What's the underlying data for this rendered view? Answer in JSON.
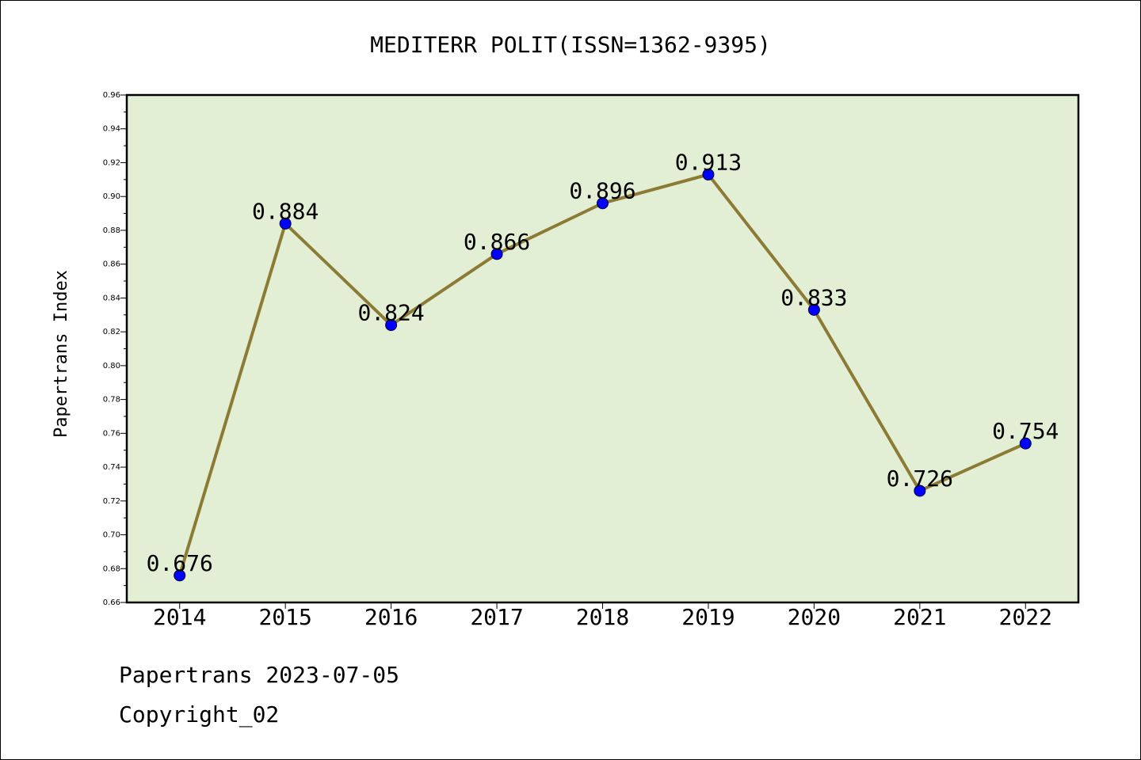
{
  "chart_data": {
    "type": "line",
    "title": "MEDITERR POLIT(ISSN=1362-9395)",
    "xlabel": "",
    "ylabel": "Papertrans Index",
    "categories": [
      "2014",
      "2015",
      "2016",
      "2017",
      "2018",
      "2019",
      "2020",
      "2021",
      "2022"
    ],
    "series": [
      {
        "values": [
          0.676,
          0.884,
          0.824,
          0.866,
          0.896,
          0.913,
          0.833,
          0.726,
          0.754
        ]
      }
    ],
    "data_labels": [
      "0.676",
      "0.884",
      "0.824",
      "0.866",
      "0.896",
      "0.913",
      "0.833",
      "0.726",
      "0.754"
    ],
    "ylim": [
      0.66,
      0.96
    ],
    "yticks": [
      "0.66",
      "0.68",
      "0.70",
      "0.72",
      "0.74",
      "0.76",
      "0.78",
      "0.80",
      "0.82",
      "0.84",
      "0.86",
      "0.88",
      "0.90",
      "0.92",
      "0.94",
      "0.96"
    ],
    "grid": false,
    "legend": "none",
    "colors": {
      "plot_background": "#e2efd5",
      "line": "#8c7b35",
      "marker": "#0000ff",
      "axis": "#000000"
    }
  },
  "footer": {
    "line1": "Papertrans 2023-07-05",
    "line2": "Copyright_02"
  }
}
